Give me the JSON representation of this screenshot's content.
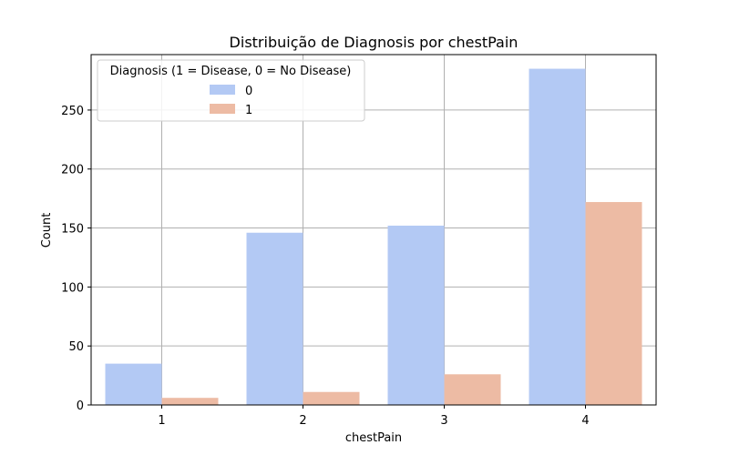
{
  "chart_data": {
    "type": "bar",
    "title": "Distribuição de Diagnosis por chestPain",
    "xlabel": "chestPain",
    "ylabel": "Count",
    "categories": [
      "1",
      "2",
      "3",
      "4"
    ],
    "ylim": [
      0,
      297
    ],
    "yticks": [
      0,
      50,
      100,
      150,
      200,
      250
    ],
    "grid": true,
    "legend": {
      "title": "Diagnosis (1 = Disease, 0 = No Disease)",
      "placement": "top-left"
    },
    "series": [
      {
        "name": "0",
        "color": "#b3c9f4",
        "values": [
          35,
          146,
          152,
          285
        ]
      },
      {
        "name": "1",
        "color": "#edbba4",
        "values": [
          6,
          11,
          26,
          172
        ]
      }
    ]
  }
}
